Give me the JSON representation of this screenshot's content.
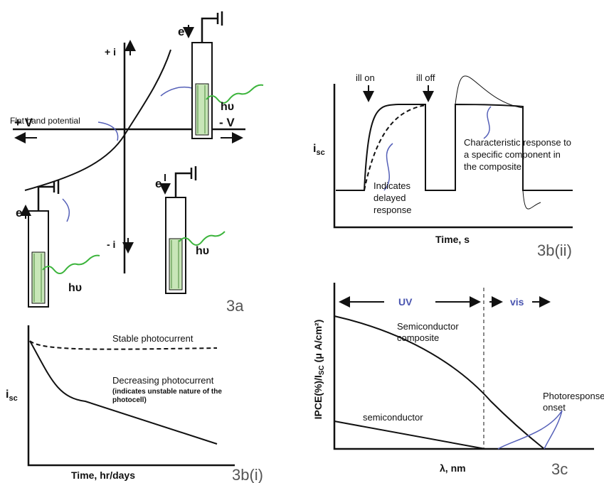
{
  "panel_3a": {
    "label": "3a",
    "y_plus": "+ i",
    "y_minus": "- i",
    "x_plus": "+ V",
    "x_minus": "- V",
    "flat_band": "Flat band potential",
    "electrodes": [
      {
        "electron": "e",
        "photon": "hυ"
      },
      {
        "electron": "e",
        "photon": "hυ"
      },
      {
        "electron": "e",
        "photon": "hυ"
      }
    ]
  },
  "panel_3b_i": {
    "label": "3b(i)",
    "y_axis": {
      "main": "i",
      "sub": "sc"
    },
    "x_axis": "Time, hr/days",
    "stable": "Stable photocurrent",
    "decreasing": "Decreasing photocurrent",
    "decreasing_note": [
      "(indicates unstable nature of the",
      "photocell)"
    ]
  },
  "panel_3b_ii": {
    "label": "3b(ii)",
    "y_axis": {
      "main": "i",
      "sub": "sc"
    },
    "x_axis": "Time, s",
    "ill_on": "ill on",
    "ill_off": "ill off",
    "delayed": [
      "Indicates",
      "delayed",
      "response"
    ],
    "characteristic": [
      "Characteristic response to",
      "a specific component in",
      "the composite"
    ]
  },
  "panel_3c": {
    "label": "3c",
    "y_axis": {
      "pre": "IPCE(%)/I",
      "sub": "SC",
      "post": " (μ A/cm²)"
    },
    "x_axis": "λ, nm",
    "uv": "UV",
    "vis": "vis",
    "composite": [
      "Semiconductor",
      "composite"
    ],
    "semiconductor": "semiconductor",
    "onset": [
      "Photoresponse",
      "onset"
    ]
  }
}
